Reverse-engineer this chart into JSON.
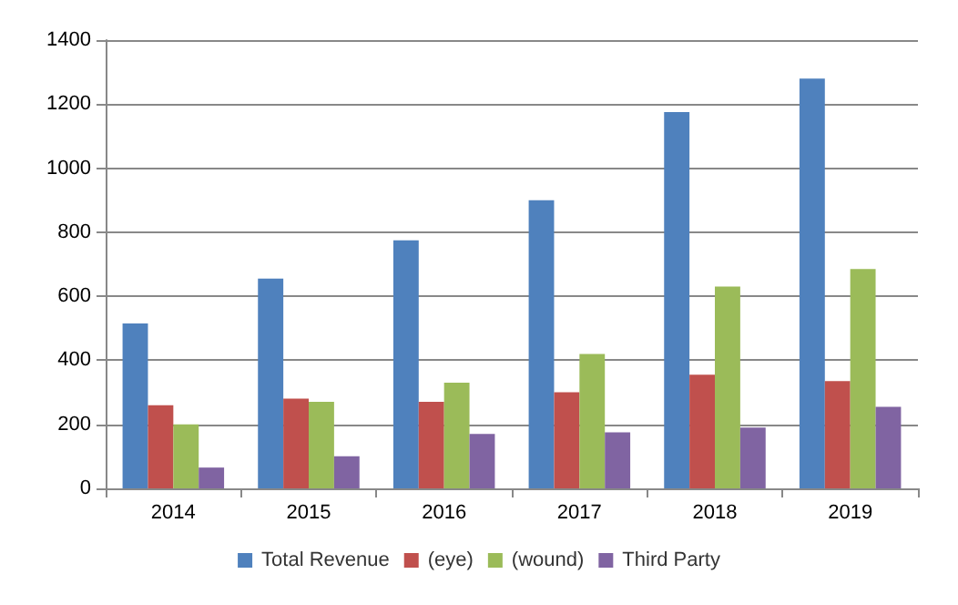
{
  "chart_data": {
    "type": "bar",
    "categories": [
      "2014",
      "2015",
      "2016",
      "2017",
      "2018",
      "2019"
    ],
    "series": [
      {
        "name": "Total Revenue",
        "color": "#4f81bd",
        "values": [
          515,
          655,
          775,
          900,
          1175,
          1280
        ]
      },
      {
        "name": "(eye)",
        "color": "#c0504d",
        "values": [
          260,
          280,
          270,
          300,
          355,
          335
        ]
      },
      {
        "name": "(wound)",
        "color": "#9bbb59",
        "values": [
          200,
          270,
          330,
          420,
          630,
          685
        ]
      },
      {
        "name": "Third Party",
        "color": "#8064a2",
        "values": [
          65,
          100,
          170,
          175,
          190,
          255
        ]
      }
    ],
    "ylim": [
      0,
      1400
    ],
    "yticks": [
      0,
      200,
      400,
      600,
      800,
      1000,
      1200,
      1400
    ],
    "grid": "y",
    "legend": "bottom"
  }
}
